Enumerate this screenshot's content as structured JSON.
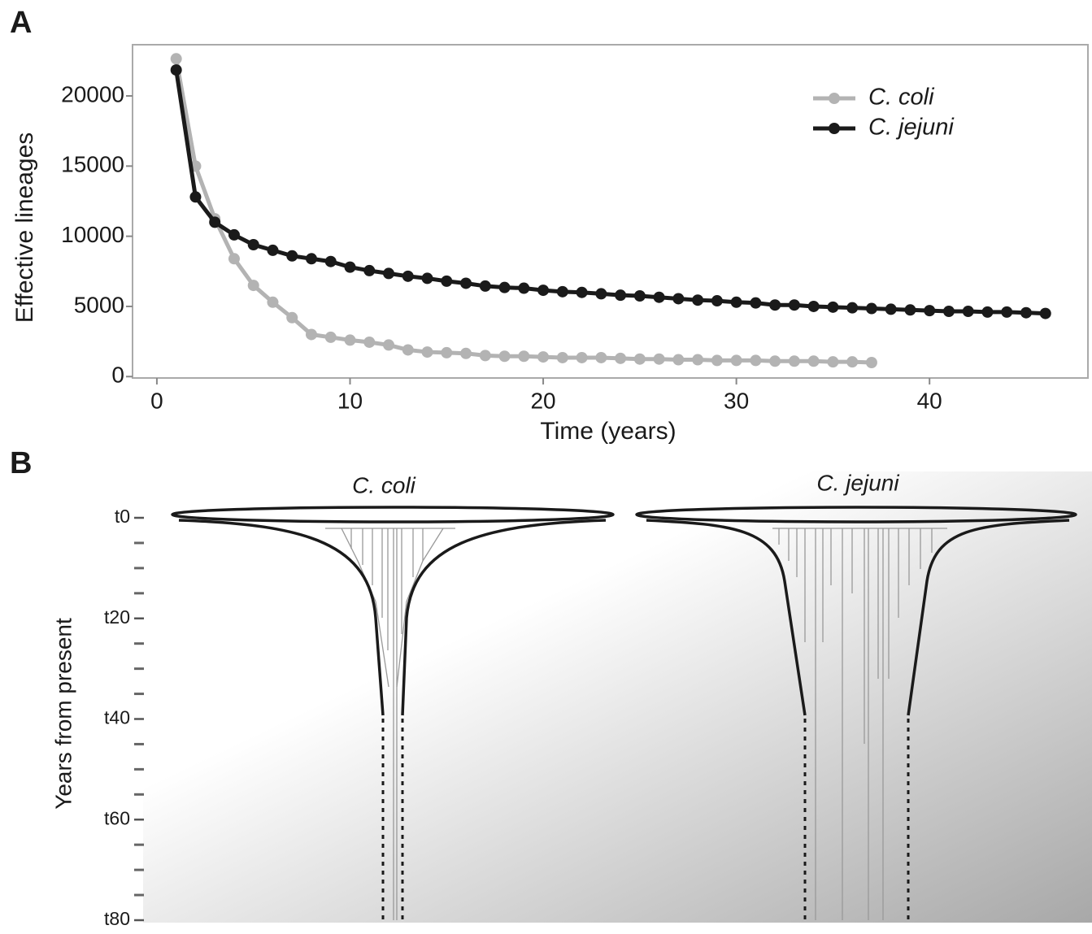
{
  "chart_data": {
    "type": "line",
    "panel": "A",
    "xlabel": "Time (years)",
    "ylabel": "Effective lineages",
    "x": [
      1,
      2,
      3,
      4,
      5,
      6,
      7,
      8,
      9,
      10,
      11,
      12,
      13,
      14,
      15,
      16,
      17,
      18,
      19,
      20,
      21,
      22,
      23,
      24,
      25,
      26,
      27,
      28,
      29,
      30,
      31,
      32,
      33,
      34,
      35,
      36,
      37,
      38,
      39,
      40,
      41,
      42,
      43,
      44,
      45,
      46
    ],
    "series": [
      {
        "name": "C. coli",
        "color": "#b3b3b3",
        "values": [
          22650,
          15000,
          11250,
          8400,
          6500,
          5300,
          4200,
          3000,
          2800,
          2600,
          2450,
          2250,
          1900,
          1750,
          1700,
          1650,
          1500,
          1450,
          1450,
          1400,
          1350,
          1350,
          1350,
          1300,
          1250,
          1250,
          1200,
          1200,
          1150,
          1150,
          1150,
          1100,
          1100,
          1100,
          1050,
          1050,
          1000,
          null,
          null,
          null,
          null,
          null,
          null,
          null,
          null,
          null
        ]
      },
      {
        "name": "C. jejuni",
        "color": "#1a1a1a",
        "values": [
          21850,
          12800,
          11000,
          10100,
          9400,
          9000,
          8600,
          8400,
          8200,
          7800,
          7550,
          7350,
          7150,
          7000,
          6800,
          6650,
          6450,
          6350,
          6300,
          6150,
          6050,
          6000,
          5900,
          5800,
          5750,
          5650,
          5550,
          5450,
          5400,
          5300,
          5250,
          5100,
          5100,
          5000,
          4950,
          4900,
          4850,
          4800,
          4750,
          4700,
          4650,
          4650,
          4600,
          4600,
          4550,
          4500
        ]
      }
    ],
    "xlim": [
      -1.26,
      48.2
    ],
    "ylim": [
      -100,
      23650
    ],
    "xticks": [
      0,
      10,
      20,
      30,
      40
    ],
    "yticks": [
      0,
      5000,
      10000,
      15000,
      20000
    ],
    "legend": "top-right"
  },
  "panel_b": {
    "panel": "B",
    "ylabel": "Years from present",
    "groups": [
      "C. coli",
      "C. jejuni"
    ],
    "ylim": [
      0,
      80
    ],
    "yticks": [
      {
        "value": 0,
        "label": "t0"
      },
      {
        "value": 20,
        "label": "t20"
      },
      {
        "value": 40,
        "label": "t40"
      },
      {
        "value": 60,
        "label": "t60"
      },
      {
        "value": 80,
        "label": "t80"
      }
    ]
  }
}
